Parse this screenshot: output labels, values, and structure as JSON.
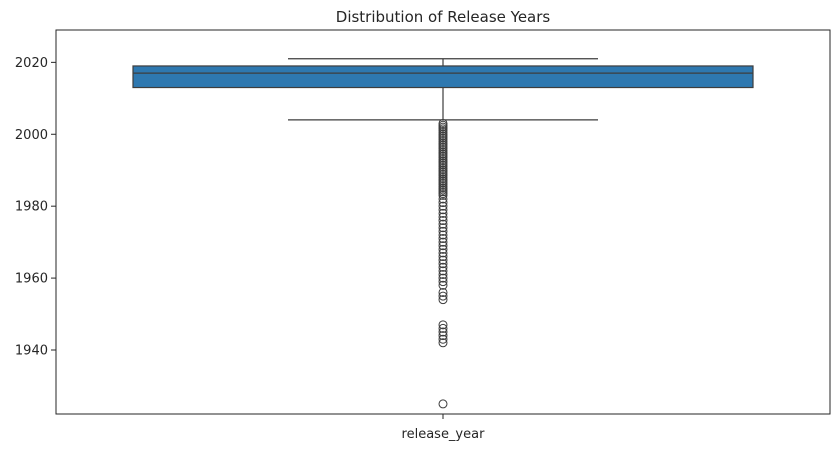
{
  "chart_data": {
    "type": "box",
    "title": "Distribution of Release Years",
    "xlabel": "",
    "ylabel": "",
    "categories": [
      "release_year"
    ],
    "ylim": [
      1922.2,
      2029.0
    ],
    "yticks": [
      1940,
      1960,
      1980,
      2000,
      2020
    ],
    "grid": false,
    "colors": {
      "box_fill": "#2e78b0",
      "line": "#3d3d3d"
    },
    "box": {
      "q1": 2013,
      "median": 2017,
      "q3": 2019,
      "whisker_low": 2004,
      "whisker_high": 2021
    },
    "outliers": [
      2003,
      2002.5,
      2002,
      2001.5,
      2001,
      2000.5,
      2000,
      1999.5,
      1999,
      1998.5,
      1998,
      1997.5,
      1997,
      1996.5,
      1996,
      1995.5,
      1995,
      1994.5,
      1994,
      1993.5,
      1993,
      1992.5,
      1992,
      1991.5,
      1991,
      1990.5,
      1990,
      1989.5,
      1989,
      1988.5,
      1988,
      1987.5,
      1987,
      1986.5,
      1986,
      1985.5,
      1985,
      1984.5,
      1984,
      1983.5,
      1983,
      1982,
      1981,
      1980,
      1979,
      1978,
      1977,
      1976,
      1975,
      1974,
      1973,
      1972,
      1971,
      1970,
      1969,
      1968,
      1967,
      1966,
      1965,
      1964,
      1963,
      1962,
      1961,
      1960,
      1959,
      1958,
      1956,
      1955,
      1954,
      1947,
      1946,
      1945,
      1944,
      1943,
      1942,
      1925
    ]
  }
}
